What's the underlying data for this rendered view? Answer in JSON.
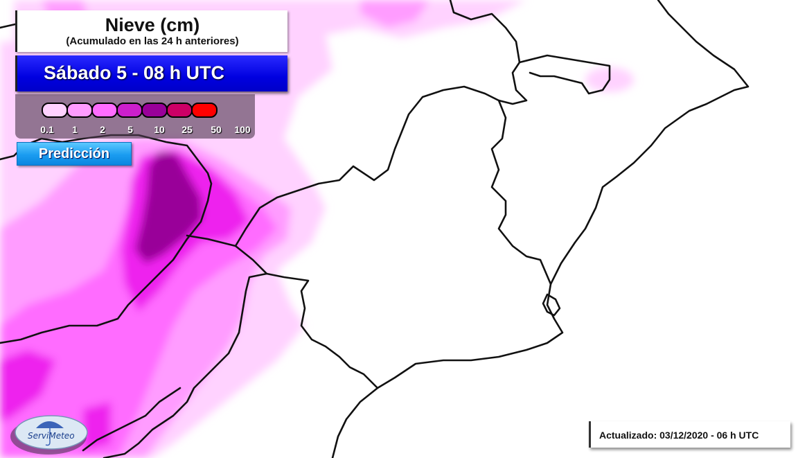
{
  "header": {
    "title": "Nieve (cm)",
    "subtitle": "(Acumulado en las 24 h anteriores)",
    "date": "Sábado 5 - 08 h UTC"
  },
  "legend": {
    "thresholds": [
      "0.1",
      "1",
      "2",
      "5",
      "10",
      "25",
      "50",
      "100"
    ],
    "colors": [
      "#ffd2ff",
      "#ff9cff",
      "#ff6cff",
      "#cc1fcc",
      "#990099",
      "#cc0066",
      "#ff0000"
    ]
  },
  "badge": {
    "label": "Predicción"
  },
  "logo": {
    "name": "ServiMeteo"
  },
  "footer": {
    "updated": "Actualizado: 03/12/2020 - 06 h UTC"
  },
  "colors": {
    "snow_0_1": "#ffd2ff",
    "snow_1": "#ff9cff",
    "snow_2": "#ff6cff",
    "snow_5": "#cc1fcc",
    "snow_10": "#990099",
    "border": "#111111"
  }
}
